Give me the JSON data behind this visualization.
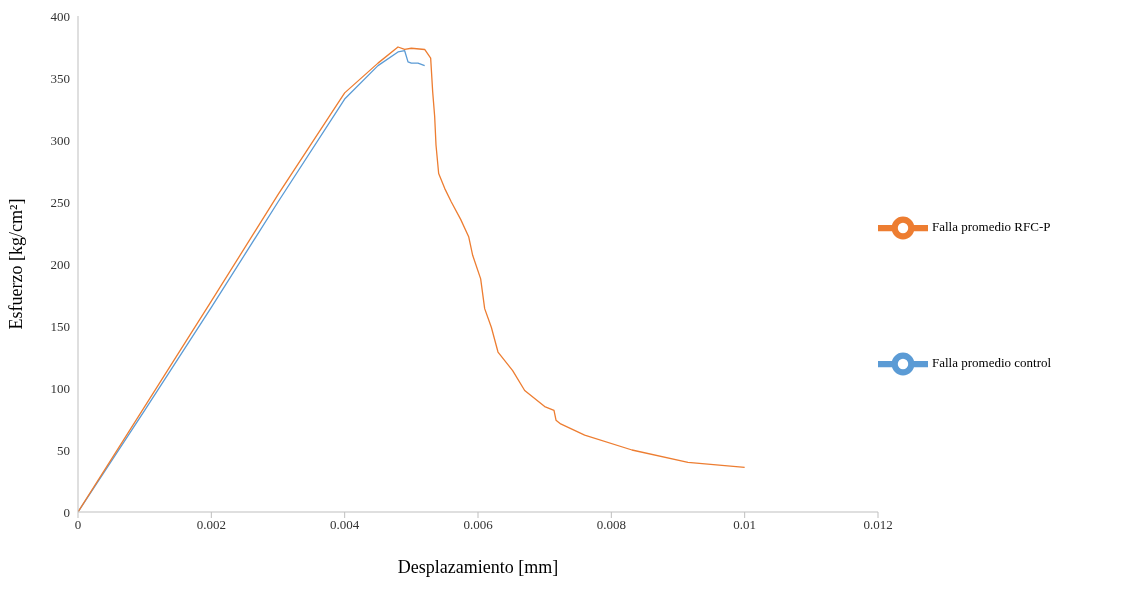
{
  "chart_data": {
    "type": "line",
    "xlabel": "Desplazamiento  [mm]",
    "ylabel": "Esfuerzo  [kg/cm²]",
    "xlim": [
      0,
      0.012
    ],
    "xticks": [
      0,
      0.002,
      0.004,
      0.006,
      0.008,
      0.01,
      0.012
    ],
    "ylim": [
      0,
      400
    ],
    "yticks": [
      0,
      50,
      100,
      150,
      200,
      250,
      300,
      350,
      400
    ],
    "grid": false,
    "legend": "right",
    "marker": "none",
    "line_style": "solid",
    "series": [
      {
        "name": "Falla promedio control",
        "color": "#5b9bd5",
        "x": [
          0,
          0.001,
          0.002,
          0.003,
          0.004,
          0.0045,
          0.0048,
          0.0049,
          0.00495,
          0.005,
          0.0051,
          0.0052
        ],
        "values": [
          0,
          82,
          165,
          250,
          333,
          360,
          371,
          372,
          363,
          362,
          362,
          360
        ]
      },
      {
        "name": "Falla promedio RFC-P",
        "color": "#ed7d31",
        "x": [
          0,
          0.001,
          0.002,
          0.003,
          0.004,
          0.0045,
          0.0048,
          0.0049,
          0.005,
          0.0052,
          0.00529,
          0.00532,
          0.00535,
          0.00537,
          0.00541,
          0.0055,
          0.0056,
          0.00574,
          0.00586,
          0.00592,
          0.00604,
          0.0061,
          0.0062,
          0.0063,
          0.00652,
          0.0067,
          0.007,
          0.00714,
          0.00717,
          0.00724,
          0.0076,
          0.00831,
          0.00915,
          0.01
        ],
        "values": [
          0,
          85,
          170,
          256,
          338,
          362,
          375,
          373,
          374,
          373,
          366,
          339,
          319,
          296,
          273,
          261,
          250,
          236,
          222,
          207,
          188,
          164,
          149,
          129,
          114,
          98,
          85,
          82,
          74,
          71,
          62,
          50,
          40,
          36
        ]
      }
    ]
  }
}
